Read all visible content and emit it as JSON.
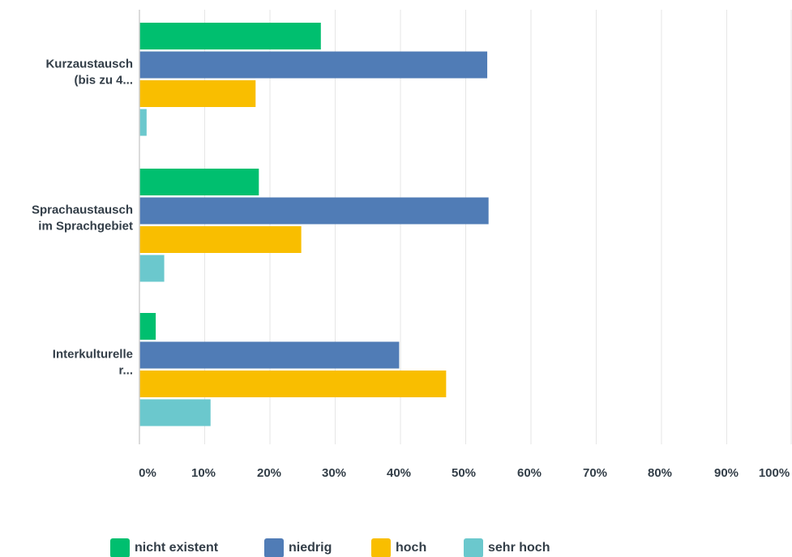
{
  "chart_data": {
    "type": "bar",
    "orientation": "horizontal",
    "categories": [
      [
        "Kurzaustausch",
        "(bis zu 4..."
      ],
      [
        "Sprachaustausch",
        "im Sprachgebiet"
      ],
      [
        "Interkulturelle",
        "r..."
      ]
    ],
    "series": [
      {
        "name": "nicht existent",
        "color": "#00bf6f",
        "values": [
          27.8,
          18.3,
          2.5
        ]
      },
      {
        "name": "niedrig",
        "color": "#507cb6",
        "values": [
          53.3,
          53.5,
          39.8
        ]
      },
      {
        "name": "hoch",
        "color": "#f9be00",
        "values": [
          17.8,
          24.8,
          47.0
        ]
      },
      {
        "name": "sehr hoch",
        "color": "#6bc8cd",
        "values": [
          1.1,
          3.8,
          10.9
        ]
      }
    ],
    "xlim": [
      0,
      100
    ],
    "xticks": [
      "0%",
      "10%",
      "20%",
      "30%",
      "40%",
      "50%",
      "60%",
      "70%",
      "80%",
      "90%",
      "100%"
    ],
    "grid": true,
    "legend_position": "bottom",
    "colors": {
      "grid": "#e6e6e6",
      "axis": "#cfcfcf",
      "text": "#333e48"
    }
  }
}
